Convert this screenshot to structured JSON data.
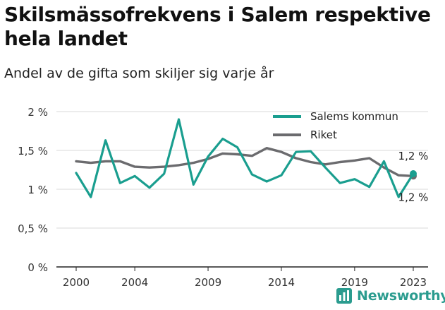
{
  "title": "Skilsmässofrekvens i Salem respektive hela landet",
  "subtitle": "Andel av de gifta som skiljer sig varje år",
  "brand": {
    "name": "Newsworthy",
    "icon": "newsworthy-logo-icon"
  },
  "colors": {
    "salem": "#1a9e8f",
    "riket": "#6b6b6e",
    "grid": "#d9d9d9",
    "axis": "#222222"
  },
  "chart_data": {
    "type": "line",
    "x": [
      2000,
      2001,
      2002,
      2003,
      2004,
      2005,
      2006,
      2007,
      2008,
      2009,
      2010,
      2011,
      2012,
      2013,
      2014,
      2015,
      2016,
      2017,
      2018,
      2019,
      2020,
      2021,
      2022,
      2023
    ],
    "x_ticks": [
      2000,
      2004,
      2009,
      2014,
      2019,
      2023
    ],
    "y_ticks": [
      0,
      0.5,
      1,
      1.5,
      2
    ],
    "y_tick_labels": [
      "0 %",
      "0,5 %",
      "1 %",
      "1,5 %",
      "2 %"
    ],
    "ylim": [
      0,
      2
    ],
    "xlim": [
      2000,
      2023
    ],
    "grid": true,
    "legend_position": "top-right",
    "series": [
      {
        "name": "Salems kommun",
        "values": [
          1.21,
          0.9,
          1.63,
          1.08,
          1.17,
          1.02,
          1.2,
          1.9,
          1.06,
          1.42,
          1.65,
          1.54,
          1.19,
          1.1,
          1.18,
          1.48,
          1.49,
          1.28,
          1.08,
          1.13,
          1.03,
          1.36,
          0.9,
          1.2
        ],
        "end_label": "1,2 %"
      },
      {
        "name": "Riket",
        "values": [
          1.36,
          1.34,
          1.36,
          1.36,
          1.29,
          1.28,
          1.29,
          1.31,
          1.34,
          1.39,
          1.46,
          1.45,
          1.43,
          1.53,
          1.48,
          1.4,
          1.35,
          1.32,
          1.35,
          1.37,
          1.4,
          1.28,
          1.18,
          1.17
        ],
        "end_label": "1,2 %"
      }
    ]
  }
}
